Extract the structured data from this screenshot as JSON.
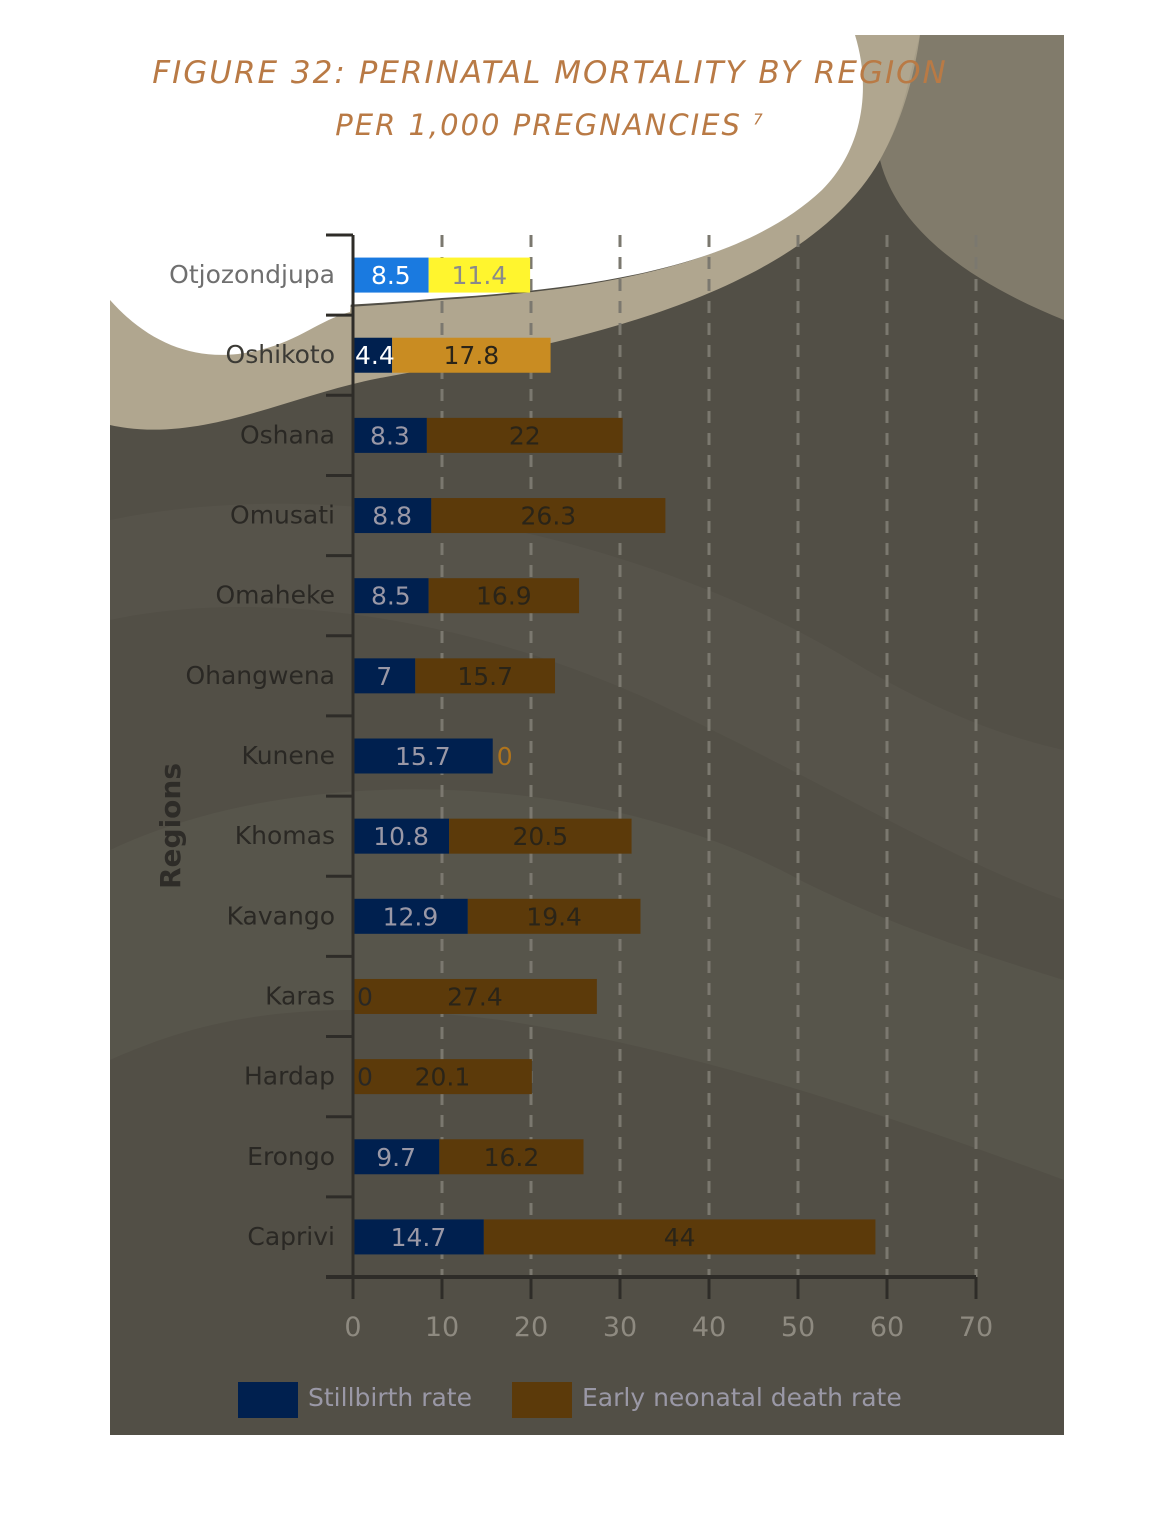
{
  "chart_data": {
    "type": "bar",
    "stacked": true,
    "orientation": "horizontal",
    "title": "FIGURE 32: PERINATAL MORTALITY BY REGION",
    "subtitle": "PER 1,000 PREGNANCIES",
    "subtitle_superscript": "7",
    "xlabel": "",
    "ylabel": "Regions",
    "xlim": [
      0,
      70
    ],
    "xticks": [
      "0",
      "10",
      "20",
      "30",
      "40",
      "50",
      "60",
      "70"
    ],
    "grid": "vertical dashed",
    "legend_position": "bottom",
    "categories": [
      "Otjozondjupa",
      "Oshikoto",
      "Oshana",
      "Omusati",
      "Omaheke",
      "Ohangwena",
      "Kunene",
      "Khomas",
      "Kavango",
      "Karas",
      "Hardap",
      "Erongo",
      "Caprivi"
    ],
    "series": [
      {
        "name": "Stillbirth rate",
        "color": "#00204f",
        "values": [
          8.5,
          4.4,
          8.3,
          8.8,
          8.5,
          7,
          15.7,
          10.8,
          12.9,
          0,
          0,
          9.7,
          14.7
        ],
        "labels": [
          "8.5",
          "4.4",
          "8.3",
          "8.8",
          "8.5",
          "7",
          "15.7",
          "10.8",
          "12.9",
          "0",
          "0",
          "9.7",
          "14.7"
        ]
      },
      {
        "name": "Early neonatal death rate",
        "color": "#5c3a0a",
        "values": [
          11.4,
          17.8,
          22,
          26.3,
          16.9,
          15.7,
          0,
          20.5,
          19.4,
          27.4,
          20.1,
          16.2,
          44
        ],
        "labels": [
          "11.4",
          "17.8",
          "22",
          "26.3",
          "16.9",
          "15.7",
          "0",
          "20.5",
          "19.4",
          "27.4",
          "20.1",
          "16.2",
          "44"
        ]
      }
    ]
  },
  "colors": {
    "panel_background": "#524f46",
    "title": "#b97a45",
    "highlight_stillbirth": "#1a7ae0",
    "highlight_neonatal": "#fff52e",
    "highlight_neonatal_row2": "#c98c22"
  }
}
